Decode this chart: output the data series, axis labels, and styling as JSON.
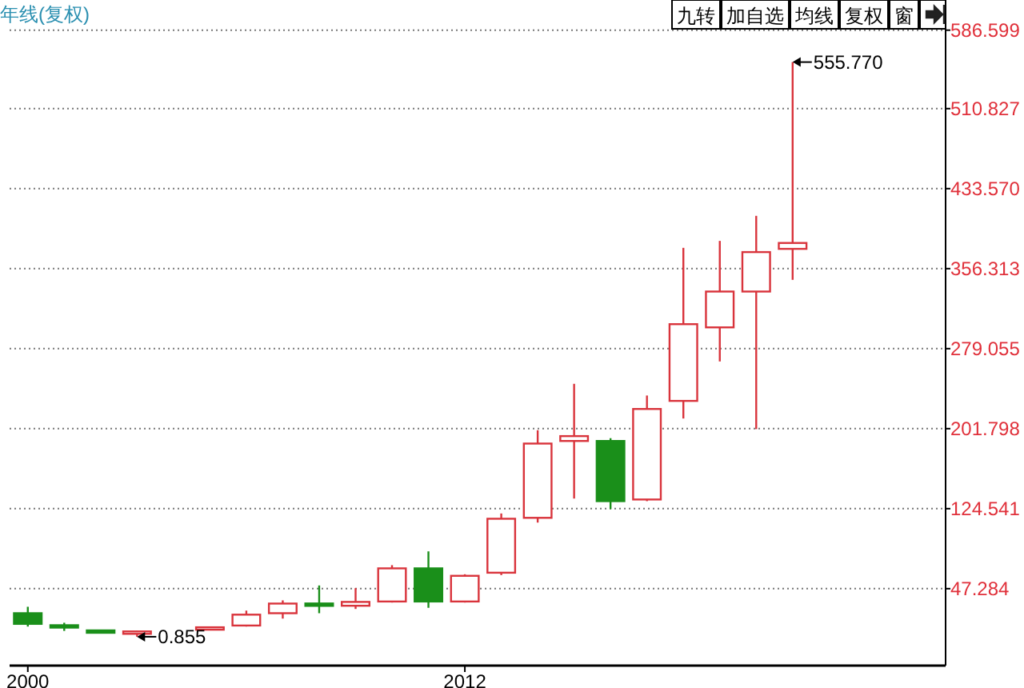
{
  "chart_data": {
    "type": "candlestick",
    "title": "年线(复权)",
    "x": [
      2000,
      2001,
      2002,
      2003,
      2005,
      2006,
      2007,
      2008,
      2009,
      2010,
      2011,
      2012,
      2013,
      2014,
      2015,
      2016,
      2017,
      2018,
      2019,
      2020,
      2021
    ],
    "ohlc": [
      [
        23.6,
        29.8,
        10.7,
        13.3
      ],
      [
        12,
        14.4,
        6.5,
        10
      ],
      [
        7,
        7,
        5,
        5
      ],
      [
        4,
        6.5,
        0.855,
        6
      ],
      [
        8,
        10.5,
        8,
        10
      ],
      [
        11.7,
        26.1,
        10.7,
        22.2
      ],
      [
        23.6,
        36.0,
        18.4,
        32.9
      ],
      [
        33,
        50.4,
        23.6,
        31
      ],
      [
        30.8,
        47.8,
        27.7,
        34.5
      ],
      [
        34.9,
        70.0,
        33.9,
        66.9
      ],
      [
        66.9,
        83.3,
        28.8,
        34.9
      ],
      [
        34.9,
        61.2,
        33.9,
        59.7
      ],
      [
        62.7,
        119.9,
        60.4,
        114.8
      ],
      [
        115.7,
        200.3,
        111.1,
        187.4
      ],
      [
        189.9,
        245.1,
        134.3,
        194.6
      ],
      [
        189.9,
        192.6,
        124.1,
        131.8
      ],
      [
        133.4,
        233.8,
        131.8,
        220.8
      ],
      [
        228.6,
        376.4,
        211.6,
        302.7
      ],
      [
        299.6,
        383.1,
        266.7,
        334.2
      ],
      [
        334.2,
        407.3,
        201.4,
        372.3
      ],
      [
        375.4,
        555.77,
        345.5,
        381.1
      ]
    ],
    "colors": [
      "#1a8f1a",
      "#1a8f1a",
      "#1a8f1a",
      "#d9343c",
      "#d9343c",
      "#d9343c",
      "#d9343c",
      "#1a8f1a",
      "#d9343c",
      "#d9343c",
      "#1a8f1a",
      "#d9343c",
      "#d9343c",
      "#d9343c",
      "#d9343c",
      "#1a8f1a",
      "#d9343c",
      "#d9343c",
      "#d9343c",
      "#d9343c",
      "#d9343c"
    ],
    "xlim": [
      1999.5,
      2025.2
    ],
    "xticks": [
      2000,
      2012
    ],
    "ylim": [
      -27,
      591
    ],
    "yticks": [
      47.284,
      124.541,
      201.798,
      279.055,
      356.313,
      {
        "value": 433.57,
        "label": "433.570"
      },
      510.827,
      586.599
    ],
    "grid": "y",
    "annotations": [
      {
        "text": "555.770",
        "x": 2021,
        "y": 555.77
      },
      {
        "text": "0.855",
        "x": 2003,
        "y": 0.855
      },
      "九转",
      "加自选",
      "均线",
      "复权",
      "窗"
    ]
  }
}
